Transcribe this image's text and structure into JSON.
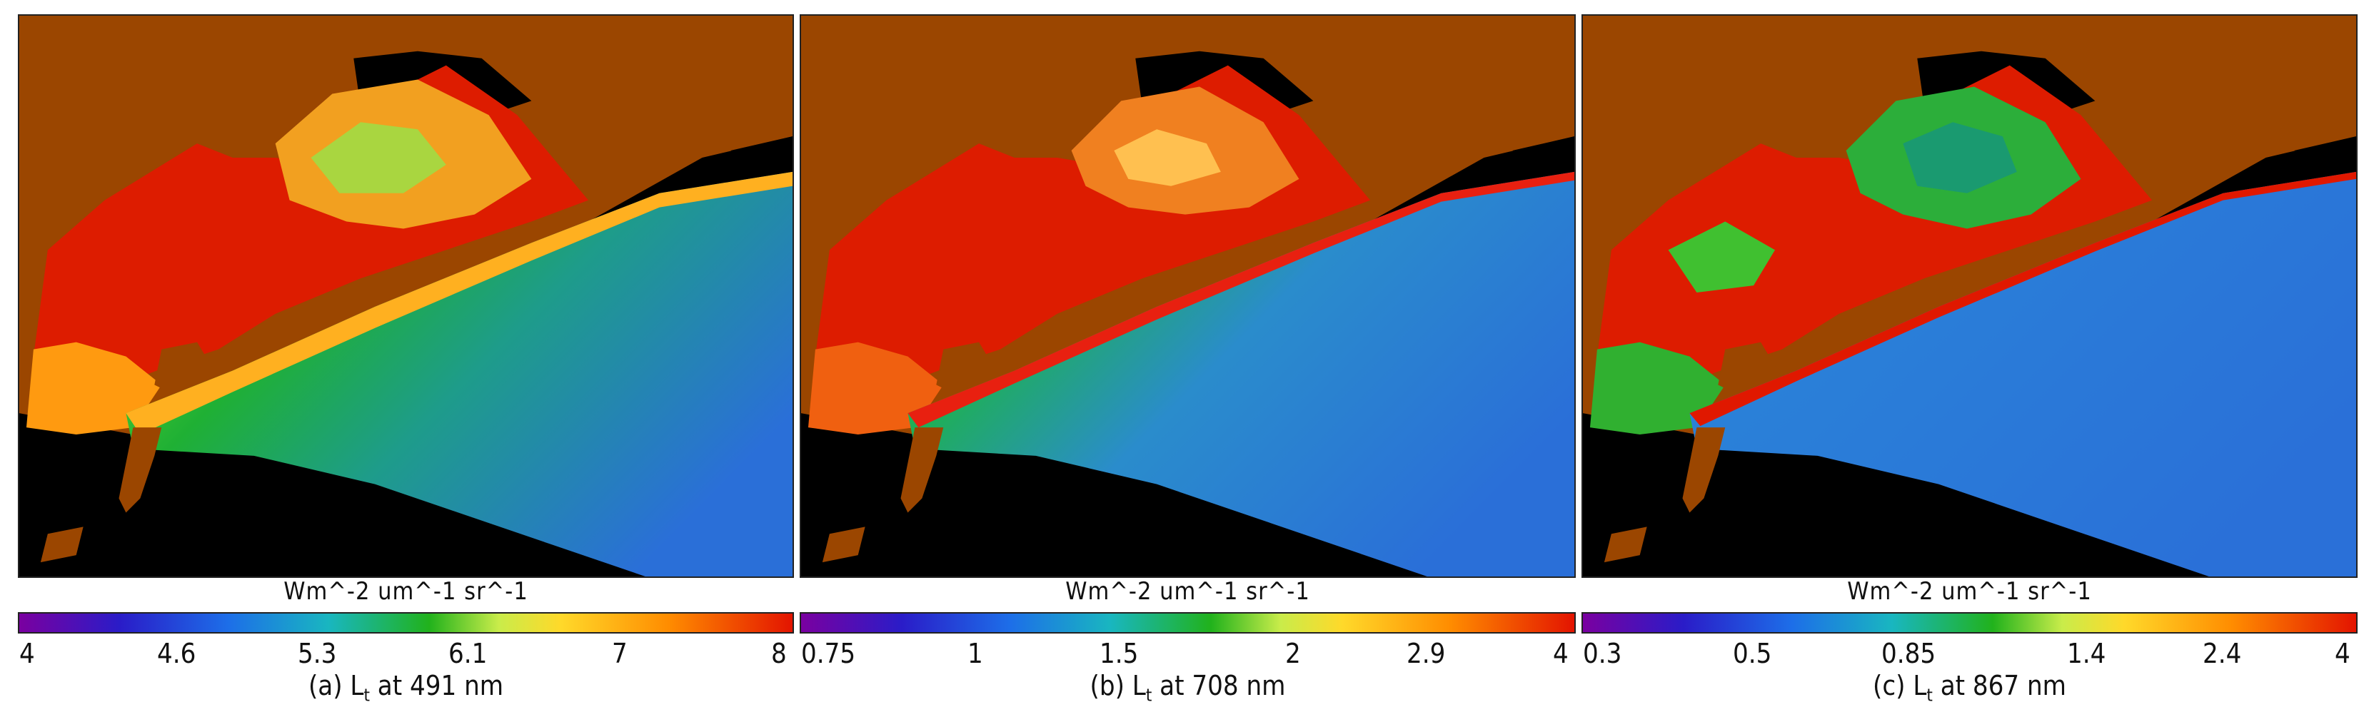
{
  "colors": {
    "land": "#9b4600",
    "nodata": "#000000",
    "water_deep": "#2a6fd8",
    "water_mid": "#1fb034",
    "coast": "#ff2000",
    "inland": "#dd1c00"
  },
  "colorbar_stops": [
    "#7a00a0",
    "#2a1cc8",
    "#1d6ee8",
    "#19b6c0",
    "#21b21c",
    "#c9ec4a",
    "#ffd92a",
    "#ff8c00",
    "#e31400"
  ],
  "panels": [
    {
      "unit_label": "Wm^-2 um^-1 sr^-1",
      "ticks": [
        "4",
        "4.6",
        "5.3",
        "6.1",
        "7",
        "8"
      ],
      "caption_prefix": "(a) L",
      "caption_sub": "t",
      "caption_suffix": " at 491 nm"
    },
    {
      "unit_label": "Wm^-2 um^-1 sr^-1",
      "ticks": [
        "0.75",
        "1",
        "1.5",
        "2",
        "2.9",
        "4"
      ],
      "caption_prefix": "(b) L",
      "caption_sub": "t",
      "caption_suffix": " at 708 nm"
    },
    {
      "unit_label": "Wm^-2 um^-1 sr^-1",
      "ticks": [
        "0.3",
        "0.5",
        "0.85",
        "1.4",
        "2.4",
        "4"
      ],
      "caption_prefix": "(c) L",
      "caption_sub": "t",
      "caption_suffix": " at 867 nm"
    }
  ]
}
